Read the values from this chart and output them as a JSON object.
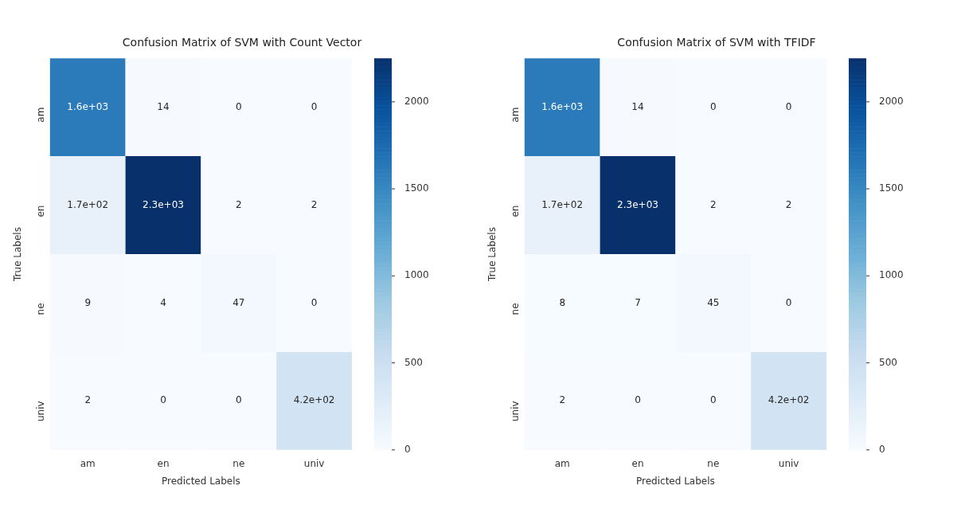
{
  "chart_data": [
    {
      "type": "heatmap",
      "title": "Confusion Matrix of SVM with Count Vector",
      "xlabel": "Predicted Labels",
      "ylabel": "True Labels",
      "categories": [
        "am",
        "en",
        "ne",
        "univ"
      ],
      "y_categories": [
        "am",
        "en",
        "ne",
        "univ"
      ],
      "cells": [
        [
          1600,
          14,
          0,
          0
        ],
        [
          170,
          2250,
          2,
          2
        ],
        [
          9,
          4,
          47,
          0
        ],
        [
          2,
          0,
          0,
          420
        ]
      ],
      "cell_labels": [
        [
          "1.6e+03",
          "14",
          "0",
          "0"
        ],
        [
          "1.7e+02",
          "2.3e+03",
          "2",
          "2"
        ],
        [
          "9",
          "4",
          "47",
          "0"
        ],
        [
          "2",
          "0",
          "0",
          "4.2e+02"
        ]
      ],
      "clim": [
        0,
        2250
      ],
      "cticks": [
        0,
        500,
        1000,
        1500,
        2000
      ]
    },
    {
      "type": "heatmap",
      "title": "Confusion Matrix of SVM with TFIDF",
      "xlabel": "Predicted Labels",
      "ylabel": "True Labels",
      "categories": [
        "am",
        "en",
        "ne",
        "univ"
      ],
      "y_categories": [
        "am",
        "en",
        "ne",
        "univ"
      ],
      "cells": [
        [
          1600,
          14,
          0,
          0
        ],
        [
          170,
          2250,
          2,
          2
        ],
        [
          8,
          7,
          45,
          0
        ],
        [
          2,
          0,
          0,
          420
        ]
      ],
      "cell_labels": [
        [
          "1.6e+03",
          "14",
          "0",
          "0"
        ],
        [
          "1.7e+02",
          "2.3e+03",
          "2",
          "2"
        ],
        [
          "8",
          "7",
          "45",
          "0"
        ],
        [
          "2",
          "0",
          "0",
          "4.2e+02"
        ]
      ],
      "clim": [
        0,
        2250
      ],
      "cticks": [
        0,
        500,
        1000,
        1500,
        2000
      ]
    }
  ]
}
